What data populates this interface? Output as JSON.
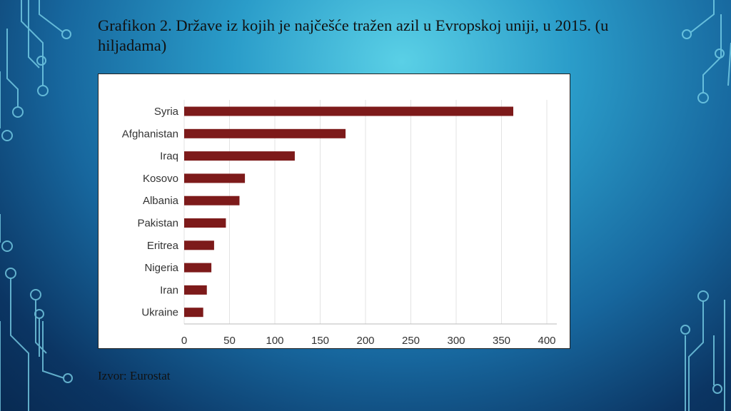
{
  "slide": {
    "title": "Grafikon 2. Države iz kojih je najčešće tražen azil u Evropskoj uniji, u 2015. (u hiljadama)",
    "source": "Izvor: Eurostat"
  },
  "colors": {
    "bar": "#7d1a1a",
    "grid": "#e3e3e3",
    "axis_text": "#333333"
  },
  "chart_data": {
    "type": "bar",
    "orientation": "horizontal",
    "categories": [
      "Syria",
      "Afghanistan",
      "Iraq",
      "Kosovo",
      "Albania",
      "Pakistan",
      "Eritrea",
      "Nigeria",
      "Iran",
      "Ukraine"
    ],
    "values": [
      363,
      178,
      122,
      67,
      61,
      46,
      33,
      30,
      25,
      21
    ],
    "xticks": [
      "0",
      "50",
      "100",
      "150",
      "200",
      "250",
      "300",
      "350",
      "400"
    ],
    "xlim": [
      0,
      400
    ],
    "title": "",
    "xlabel": "",
    "ylabel": "",
    "grid": "vertical",
    "legend": "none"
  }
}
